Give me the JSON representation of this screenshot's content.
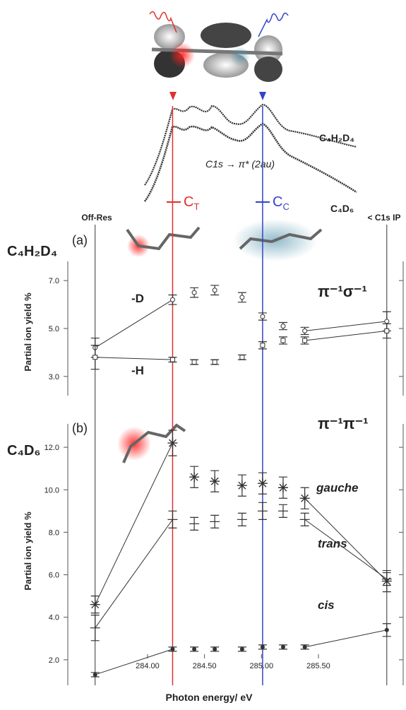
{
  "chart_data": [
    {
      "type": "scatter",
      "panel": "(a)",
      "molecule": "C₄H₂D₄",
      "channel": "π⁻¹σ⁻¹",
      "ylabel": "Partial ion yield %",
      "x": [
        283.54,
        284.22,
        284.41,
        284.59,
        284.83,
        285.01,
        285.19,
        285.38,
        286.1
      ],
      "xlim": [
        283.3,
        286.25
      ],
      "ylim": [
        2.2,
        7.8
      ],
      "yticks": [
        {
          "value": 3,
          "label": "3.0"
        },
        {
          "value": 5,
          "label": "5.0"
        },
        {
          "value": 7,
          "label": "7.0"
        }
      ],
      "series": [
        {
          "name": "-D",
          "marker": "circle",
          "color": "#333333",
          "values": [
            4.2,
            6.2,
            6.5,
            6.6,
            6.3,
            5.5,
            5.1,
            4.9,
            5.3
          ],
          "errors": [
            0.4,
            0.2,
            0.2,
            0.2,
            0.2,
            0.15,
            0.15,
            0.15,
            0.4
          ]
        },
        {
          "name": "-H",
          "marker": "square",
          "color": "#333333",
          "values": [
            3.8,
            3.7,
            3.6,
            3.6,
            3.8,
            4.3,
            4.5,
            4.5,
            4.9
          ],
          "errors": [
            0.5,
            0.1,
            0.1,
            0.1,
            0.1,
            0.15,
            0.15,
            0.15,
            0.3
          ]
        }
      ]
    },
    {
      "type": "scatter",
      "panel": "(b)",
      "molecule": "C₄D₆",
      "channel": "π⁻¹π⁻¹",
      "ylabel": "Partial ion yield %",
      "xlabel": "Photon energy/ eV",
      "x": [
        283.54,
        284.22,
        284.41,
        284.59,
        284.83,
        285.01,
        285.19,
        285.38,
        286.1
      ],
      "xlim": [
        283.3,
        286.25
      ],
      "ylim": [
        0.8,
        13.1
      ],
      "xticks": [
        {
          "value": 284,
          "label": "284.00"
        },
        {
          "value": 284.5,
          "label": "284.50"
        },
        {
          "value": 285,
          "label": "285.00"
        },
        {
          "value": 285.5,
          "label": "285.50"
        }
      ],
      "yticks": [
        {
          "value": 2,
          "label": "2.0"
        },
        {
          "value": 4,
          "label": "4.0"
        },
        {
          "value": 6,
          "label": "6.0"
        },
        {
          "value": 8,
          "label": "8.0"
        },
        {
          "value": 10,
          "label": "10.0"
        },
        {
          "value": 12,
          "label": "12.0"
        }
      ],
      "series": [
        {
          "name": "gauche",
          "marker": "star",
          "color": "#333333",
          "values": [
            4.6,
            12.2,
            10.6,
            10.4,
            10.2,
            10.3,
            10.1,
            9.6,
            5.7
          ],
          "errors": [
            0.4,
            0.6,
            0.5,
            0.5,
            0.5,
            0.5,
            0.5,
            0.5,
            0.5
          ]
        },
        {
          "name": "trans",
          "marker": "dash",
          "color": "#333333",
          "values": [
            3.5,
            8.6,
            8.4,
            8.5,
            8.6,
            9.0,
            9.0,
            8.6,
            5.8
          ],
          "errors": [
            0.6,
            0.4,
            0.3,
            0.3,
            0.3,
            0.4,
            0.3,
            0.3,
            0.3
          ]
        },
        {
          "name": "cis",
          "marker": "dot",
          "color": "#333333",
          "values": [
            1.3,
            2.5,
            2.5,
            2.5,
            2.5,
            2.6,
            2.6,
            2.6,
            3.4
          ],
          "errors": [
            0.1,
            0.1,
            0.1,
            0.1,
            0.1,
            0.1,
            0.1,
            0.1,
            0.3
          ]
        }
      ]
    }
  ],
  "spectrum": {
    "transition": "C1s → π* (2au)",
    "traces": [
      "C₄H₂D₄",
      "C₄D₆"
    ],
    "c_t": [
      "C",
      "T"
    ],
    "c_c": [
      "C",
      "C"
    ]
  },
  "edges": {
    "off_res": "Off-Res",
    "ip": "< C1s IP"
  },
  "resonances": [
    {
      "value": 284.22,
      "color": "#e03030"
    },
    {
      "value": 285.01,
      "color": "#3344c8"
    }
  ]
}
